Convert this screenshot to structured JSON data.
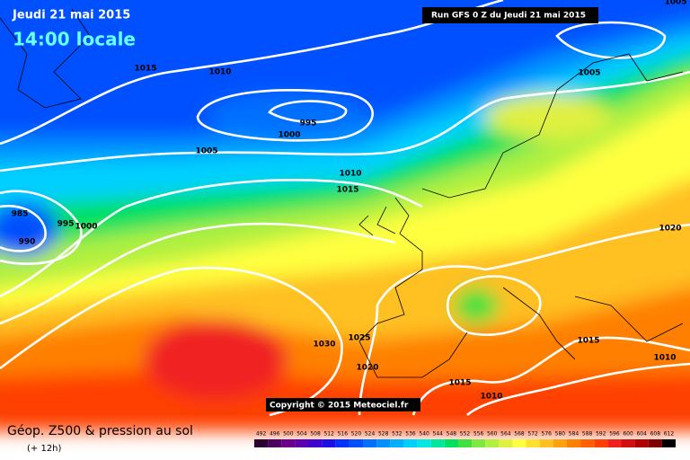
{
  "header": {
    "date": "Jeudi 21 mai 2015",
    "time": "14:00 locale",
    "run": "Run GFS 0 Z du Jeudi 21 mai 2015",
    "copyright": "Copyright © 2015 Meteociel.fr"
  },
  "isobar_labels": [
    "1015",
    "1010",
    "995",
    "1000",
    "1005",
    "1005",
    "1010",
    "1015",
    "985",
    "995",
    "1000",
    "990",
    "1020",
    "1030",
    "1025",
    "1020",
    "1015",
    "1015",
    "1010",
    "1010",
    "1005"
  ],
  "legend": {
    "title": "Géop. Z500 & pression au sol",
    "subtitle": "(+ 12h)",
    "steps": [
      {
        "value": 492,
        "color": "#2a0030"
      },
      {
        "value": 496,
        "color": "#4b0060"
      },
      {
        "value": 500,
        "color": "#6a008a"
      },
      {
        "value": 504,
        "color": "#5a00b0"
      },
      {
        "value": 508,
        "color": "#3c00d0"
      },
      {
        "value": 512,
        "color": "#1a10e6"
      },
      {
        "value": 516,
        "color": "#0030ff"
      },
      {
        "value": 520,
        "color": "#0050ff"
      },
      {
        "value": 524,
        "color": "#0070ff"
      },
      {
        "value": 528,
        "color": "#0090ff"
      },
      {
        "value": 532,
        "color": "#00b0ff"
      },
      {
        "value": 536,
        "color": "#00d0ff"
      },
      {
        "value": 540,
        "color": "#00e8e0"
      },
      {
        "value": 544,
        "color": "#00e8a0"
      },
      {
        "value": 548,
        "color": "#00e060"
      },
      {
        "value": 552,
        "color": "#40e040"
      },
      {
        "value": 556,
        "color": "#80e840"
      },
      {
        "value": 560,
        "color": "#b0f040"
      },
      {
        "value": 564,
        "color": "#e0f040"
      },
      {
        "value": 568,
        "color": "#ffff40"
      },
      {
        "value": 572,
        "color": "#ffe030"
      },
      {
        "value": 576,
        "color": "#ffc020"
      },
      {
        "value": 580,
        "color": "#ffa010"
      },
      {
        "value": 584,
        "color": "#ff8000"
      },
      {
        "value": 588,
        "color": "#ff6000"
      },
      {
        "value": 592,
        "color": "#ff4000"
      },
      {
        "value": 596,
        "color": "#f02020"
      },
      {
        "value": 600,
        "color": "#d01010"
      },
      {
        "value": 604,
        "color": "#b00000"
      },
      {
        "value": 608,
        "color": "#800000"
      },
      {
        "value": 612,
        "color": "#000000"
      }
    ]
  }
}
